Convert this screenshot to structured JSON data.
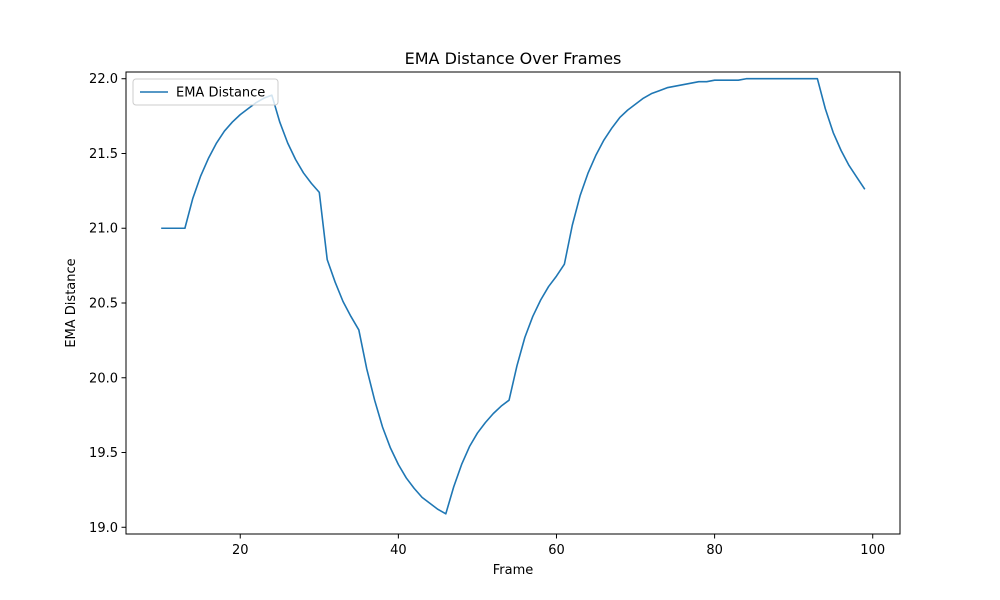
{
  "chart_data": {
    "type": "line",
    "title": "EMA Distance Over Frames",
    "xlabel": "Frame",
    "ylabel": "EMA Distance",
    "xlim": [
      5.55,
      103.45
    ],
    "ylim": [
      18.955,
      22.045
    ],
    "xticks": [
      20,
      40,
      60,
      80,
      100
    ],
    "yticks": [
      19.0,
      19.5,
      20.0,
      20.5,
      21.0,
      21.5,
      22.0
    ],
    "xtick_labels": [
      "20",
      "40",
      "60",
      "80",
      "100"
    ],
    "ytick_labels": [
      "19.0",
      "19.5",
      "20.0",
      "20.5",
      "21.0",
      "21.5",
      "22.0"
    ],
    "grid": false,
    "legend_position": "upper-left",
    "series": [
      {
        "name": "EMA Distance",
        "color": "#1f77b4",
        "x": [
          10,
          11,
          12,
          13,
          14,
          15,
          16,
          17,
          18,
          19,
          20,
          21,
          22,
          23,
          24,
          25,
          26,
          27,
          28,
          29,
          30,
          31,
          32,
          33,
          34,
          35,
          36,
          37,
          38,
          39,
          40,
          41,
          42,
          43,
          44,
          45,
          46,
          47,
          48,
          49,
          50,
          51,
          52,
          53,
          54,
          55,
          56,
          57,
          58,
          59,
          60,
          61,
          62,
          63,
          64,
          65,
          66,
          67,
          68,
          69,
          70,
          71,
          72,
          73,
          74,
          75,
          76,
          77,
          78,
          79,
          80,
          81,
          82,
          83,
          84,
          85,
          86,
          87,
          88,
          89,
          90,
          91,
          92,
          93,
          94,
          95,
          96,
          97,
          98,
          99
        ],
        "y": [
          21.0,
          21.0,
          21.0,
          21.0,
          21.2,
          21.35,
          21.47,
          21.57,
          21.65,
          21.71,
          21.76,
          21.8,
          21.84,
          21.87,
          21.89,
          21.71,
          21.57,
          21.46,
          21.37,
          21.3,
          21.24,
          20.79,
          20.64,
          20.51,
          20.41,
          20.32,
          20.06,
          19.85,
          19.67,
          19.53,
          19.42,
          19.33,
          19.26,
          19.2,
          19.16,
          19.12,
          19.09,
          19.27,
          19.42,
          19.54,
          19.63,
          19.7,
          19.76,
          19.81,
          19.85,
          20.08,
          20.27,
          20.41,
          20.52,
          20.61,
          20.68,
          20.76,
          21.02,
          21.22,
          21.37,
          21.49,
          21.59,
          21.67,
          21.74,
          21.79,
          21.83,
          21.87,
          21.9,
          21.92,
          21.94,
          21.95,
          21.96,
          21.97,
          21.98,
          21.98,
          21.99,
          21.99,
          21.99,
          21.99,
          22.0,
          22.0,
          22.0,
          22.0,
          22.0,
          22.0,
          22.0,
          22.0,
          22.0,
          22.0,
          21.8,
          21.64,
          21.52,
          21.42,
          21.34,
          21.26
        ]
      }
    ]
  }
}
